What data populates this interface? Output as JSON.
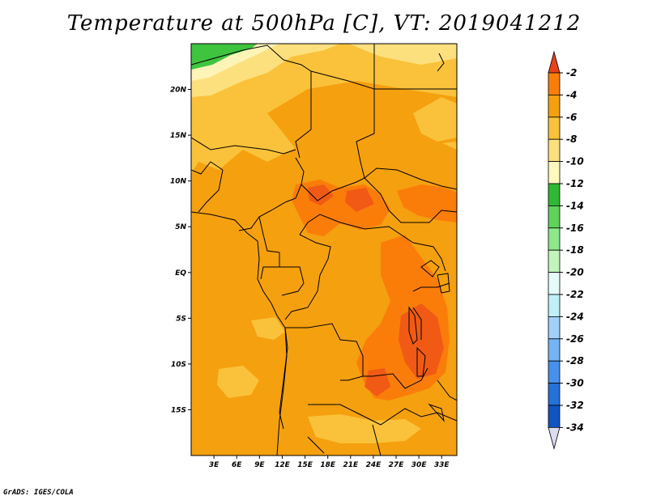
{
  "title": "Temperature at 500hPa [C], VT: 2019041212",
  "credit": "GrADS: IGES/COLA",
  "map": {
    "variable": "Temperature at 500hPa",
    "units": "C",
    "valid_time": "2019041212",
    "lon_range": [
      0,
      35
    ],
    "lat_range": [
      -20,
      25
    ],
    "lat_ticks": [
      {
        "value": 20,
        "label": "20N"
      },
      {
        "value": 15,
        "label": "15N"
      },
      {
        "value": 10,
        "label": "10N"
      },
      {
        "value": 5,
        "label": "5N"
      },
      {
        "value": 0,
        "label": "EQ"
      },
      {
        "value": -5,
        "label": "5S"
      },
      {
        "value": -10,
        "label": "10S"
      },
      {
        "value": -15,
        "label": "15S"
      }
    ],
    "lon_ticks": [
      {
        "value": 3,
        "label": "3E"
      },
      {
        "value": 6,
        "label": "6E"
      },
      {
        "value": 9,
        "label": "9E"
      },
      {
        "value": 12,
        "label": "12E"
      },
      {
        "value": 15,
        "label": "15E"
      },
      {
        "value": 18,
        "label": "18E"
      },
      {
        "value": 21,
        "label": "21E"
      },
      {
        "value": 24,
        "label": "24E"
      },
      {
        "value": 27,
        "label": "27E"
      },
      {
        "value": 30,
        "label": "30E"
      },
      {
        "value": 33,
        "label": "33E"
      }
    ]
  },
  "colorbar": {
    "labels": [
      "-2",
      "-4",
      "-6",
      "-8",
      "-10",
      "-12",
      "-14",
      "-16",
      "-18",
      "-20",
      "-22",
      "-24",
      "-26",
      "-28",
      "-30",
      "-32",
      "-34"
    ],
    "colors": [
      "#f05a14",
      "#fa7d0a",
      "#f5a00f",
      "#fac23a",
      "#fde07e",
      "#fff9bd",
      "#2fb833",
      "#5fd35a",
      "#8de88a",
      "#c1f5bb",
      "#e6fbf9",
      "#bff0fa",
      "#9fd2fb",
      "#73b4f5",
      "#4691ec",
      "#2471d8",
      "#1053c3",
      "#083da8",
      "#101879"
    ],
    "top_arrow_color": "#e8421a",
    "bottom_arrow_color": "#dcdcf0"
  },
  "colors": {
    "base_field": "#f5a00f",
    "warm_field": "#fa7d0a",
    "hot_field": "#f05a14",
    "cool_field": "#fac23a",
    "cold_field": "#fde07e",
    "coldest_field": "#fff4b8",
    "green_field": "#3fc43f",
    "border": "#000000"
  }
}
